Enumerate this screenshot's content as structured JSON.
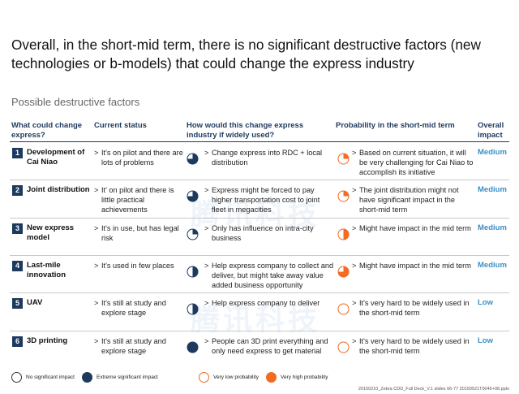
{
  "title": "Overall, in the short-mid term, there is no significant destructive factors (new technologies  or b-models) that could change the express industry",
  "subtitle": "Possible destructive factors",
  "headers": {
    "factor": "What could change express?",
    "status": "Current status",
    "change": "How would this change express industry if widely used?",
    "probability": "Probability in the short-mid term",
    "impact": "Overall impact"
  },
  "rows": [
    {
      "num": "1",
      "name": "Development of Cai Niao",
      "status": "It's on pilot and there are lots of problems",
      "change": "Change express into RDC + local distribution",
      "change_level": 0.75,
      "probability": "Based on current situation, it will be very challenging for Cai Niao to accomplish its initiative",
      "probability_level": 0.25,
      "impact": "Medium"
    },
    {
      "num": "2",
      "name": "Joint distribution",
      "status": "It' on pilot and  there is little practical achievements",
      "change": "Express might be forced to pay higher transportation cost to joint fleet in megacities",
      "change_level": 0.75,
      "probability": "The joint distribution might not have significant impact in the short-mid term",
      "probability_level": 0.25,
      "impact": "Medium"
    },
    {
      "num": "3",
      "name": "New express model",
      "status": "It's in use, but has legal risk",
      "change": "Only has influence on intra-city business",
      "change_level": 0.25,
      "probability": "Might have impact in the mid term",
      "probability_level": 0.5,
      "impact": "Medium"
    },
    {
      "num": "4",
      "name": "Last-mile innovation",
      "status": "It's used in few places",
      "change": "Help express company to collect and deliver, but might take away value added business opportunity",
      "change_level": 0.5,
      "probability": "Might have impact in the mid term",
      "probability_level": 0.75,
      "impact": "Medium"
    },
    {
      "num": "5",
      "name": "UAV",
      "status": "It's still at study and explore stage",
      "change": "Help express company to deliver",
      "change_level": 0.5,
      "probability": "It's very hard to be widely used in the short-mid term",
      "probability_level": 0,
      "impact": "Low"
    },
    {
      "num": "6",
      "name": "3D printing",
      "status": "It's still at study and explore stage",
      "change": "People can 3D print everything and only need express to get material",
      "change_level": 1,
      "probability": "It's very hard to be widely used in the short-mid term",
      "probability_level": 0,
      "impact": "Low"
    }
  ],
  "legend": {
    "no_impact": "No significant impact",
    "extreme_impact": "Extreme significant impact",
    "very_low_prob": "Very low probability",
    "very_high_prob": "Very high probability"
  },
  "footer": "20150210_Zebra CDD_Full Deck_V.1 slides 66-77 20150521T0046+08.pptx",
  "colors": {
    "navy": "#1d3a5e",
    "orange": "#f26b21",
    "impact_blue": "#3a8fc8"
  },
  "arrow_glyph": ">"
}
